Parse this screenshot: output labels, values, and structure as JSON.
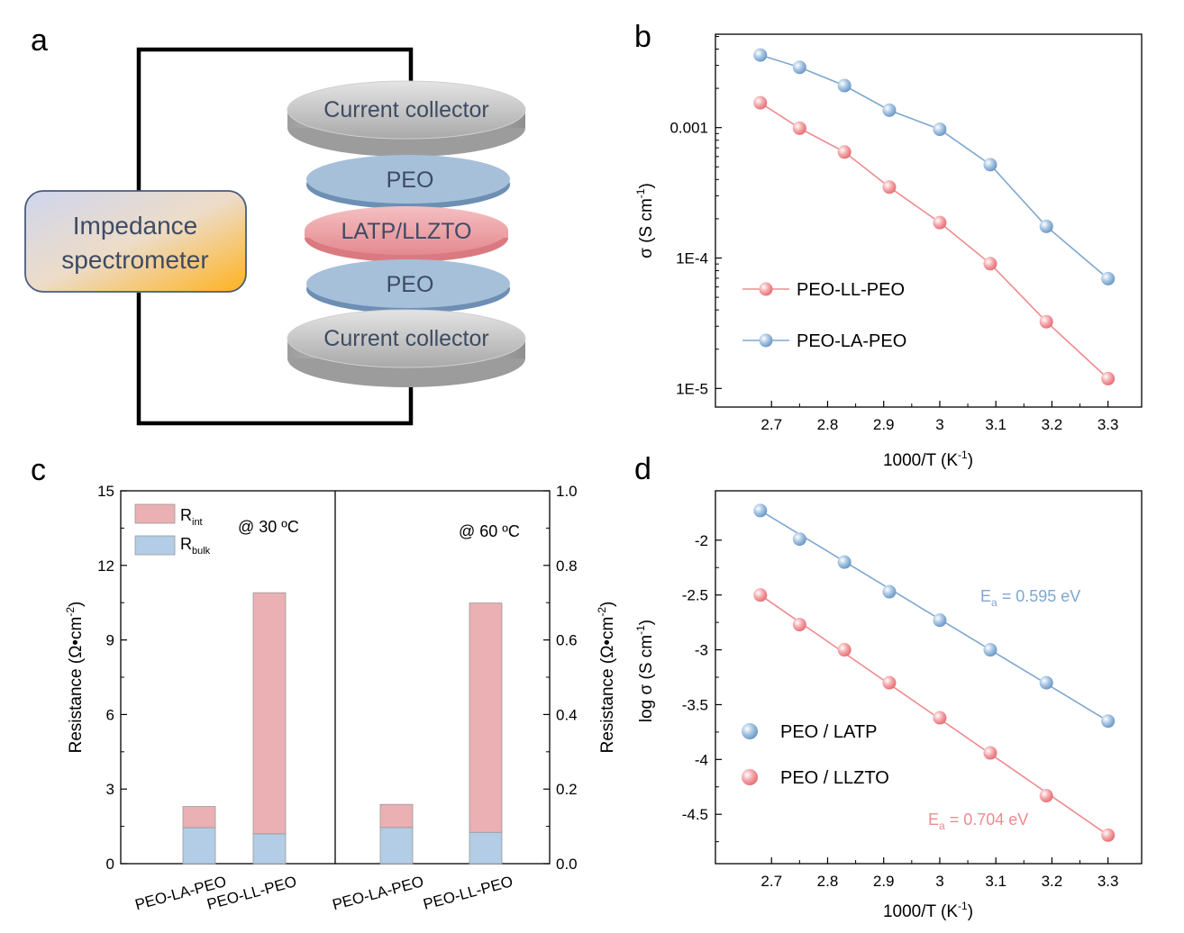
{
  "panels": {
    "a": {
      "letter": "a",
      "spectrometer_line1": "Impedance",
      "spectrometer_line2": "spectrometer",
      "layers": [
        "Current collector",
        "PEO",
        "LATP/LLZTO",
        "PEO",
        "Current collector"
      ]
    },
    "b": {
      "letter": "b",
      "xlabel_main": "1000/T (K",
      "xlabel_sup": "-1",
      "xlabel_end": ")",
      "ylabel_main": "σ (S cm",
      "ylabel_sup": "-1",
      "ylabel_end": ")"
    },
    "c": {
      "letter": "c",
      "ylabel_main": "Resistance (Ω•cm",
      "ylabel_sup": "-2",
      "ylabel_end": ")",
      "legend_int_main": "R",
      "legend_int_sub": "int",
      "legend_bulk_main": "R",
      "legend_bulk_sub": "bulk",
      "left_annotation": "@ 30 ºC",
      "right_annotation": "@ 60 ºC"
    },
    "d": {
      "letter": "d",
      "xlabel_main": "1000/T (K",
      "xlabel_sup": "-1",
      "xlabel_end": ")",
      "ylabel_main": "log σ (S cm",
      "ylabel_sup": "-1",
      "ylabel_end": ")",
      "ea_latp_main": "E",
      "ea_latp_sub": "a",
      "ea_latp_value": " = 0.595 eV",
      "ea_llzto_main": "E",
      "ea_llzto_sub": "a",
      "ea_llzto_value": " = 0.704 eV"
    }
  },
  "colors": {
    "blue": "#8fb6dc",
    "blue_line": "#7fa7cf",
    "pink": "#f19a9d",
    "pink_line": "#f08a8e",
    "bar_int": "#eab0b3",
    "bar_bulk": "#b3cde6",
    "ea_latp_text": "#7fa7cf",
    "ea_llzto_text": "#f08a8e"
  },
  "chart_data": [
    {
      "id": "b",
      "type": "line",
      "xlabel": "1000/T (K-1)",
      "ylabel": "σ (S cm-1)",
      "log_y": true,
      "xlim": [
        2.6,
        3.36
      ],
      "ylim": [
        7.2e-06,
        0.0052
      ],
      "xticks": [
        2.7,
        2.8,
        2.9,
        3,
        3.1,
        3.2,
        3.3
      ],
      "xtick_labels": [
        "2.7",
        "2.8",
        "2.9",
        "3",
        "3.1",
        "3.2",
        "3.3"
      ],
      "yticks": [
        1e-05,
        0.0001,
        0.001
      ],
      "ytick_labels": [
        "1E-5",
        "1E-4",
        "0.001"
      ],
      "legend_position": "bottom-left",
      "x": [
        2.68,
        2.75,
        2.83,
        2.91,
        3.0,
        3.09,
        3.19,
        3.3
      ],
      "series": [
        {
          "name": "PEO-LL-PEO",
          "color": "#f08a8e",
          "values": [
            0.00155,
            0.00099,
            0.00065,
            0.00035,
            0.000187,
            9.05e-05,
            3.25e-05,
            1.19e-05
          ]
        },
        {
          "name": "PEO-LA-PEO",
          "color": "#7fa7cf",
          "values": [
            0.0036,
            0.0029,
            0.0021,
            0.00136,
            0.00097,
            0.00052,
            0.000175,
            6.95e-05
          ]
        }
      ]
    },
    {
      "id": "c",
      "type": "bar",
      "stacked": true,
      "subplots": [
        {
          "annotation": "@ 30 ºC",
          "ylim": [
            0,
            15
          ],
          "yticks": [
            0,
            3,
            6,
            9,
            12,
            15
          ],
          "categories": [
            "PEO-LA-PEO",
            "PEO-LL-PEO"
          ],
          "series": [
            {
              "name": "Rbulk",
              "values": [
                1.45,
                1.2
              ]
            },
            {
              "name": "Rint",
              "values": [
                0.85,
                9.7
              ]
            }
          ]
        },
        {
          "annotation": "@ 60 ºC",
          "ylim": [
            0,
            1.0
          ],
          "yticks": [
            0.0,
            0.2,
            0.4,
            0.6,
            0.8,
            1.0
          ],
          "ytick_labels": [
            "0.0",
            "0.2",
            "0.4",
            "0.6",
            "0.8",
            "1.0"
          ],
          "categories": [
            "PEO-LA-PEO",
            "PEO-LL-PEO"
          ],
          "series": [
            {
              "name": "Rbulk",
              "values": [
                0.097,
                0.084
              ]
            },
            {
              "name": "Rint",
              "values": [
                0.062,
                0.615
              ]
            }
          ]
        }
      ],
      "ylabel": "Resistance (Ω•cm-2)",
      "legend_position": "top-left"
    },
    {
      "id": "d",
      "type": "scatter",
      "xlabel": "1000/T (K-1)",
      "ylabel": "log σ (S cm-1)",
      "xlim": [
        2.6,
        3.36
      ],
      "ylim": [
        -4.95,
        -1.55
      ],
      "xticks": [
        2.7,
        2.8,
        2.9,
        3,
        3.1,
        3.2,
        3.3
      ],
      "xtick_labels": [
        "2.7",
        "2.8",
        "2.9",
        "3",
        "3.1",
        "3.2",
        "3.3"
      ],
      "yticks": [
        -2,
        -2.5,
        -3,
        -3.5,
        -4,
        -4.5
      ],
      "ytick_labels": [
        "-2",
        "-2.5",
        "-3",
        "-3.5",
        "-4",
        "-4.5"
      ],
      "legend_position": "bottom-left",
      "x": [
        2.68,
        2.75,
        2.83,
        2.91,
        3.0,
        3.09,
        3.19,
        3.3
      ],
      "series": [
        {
          "name": "PEO / LATP",
          "color": "#7fa7cf",
          "values": [
            -1.73,
            -1.99,
            -2.2,
            -2.47,
            -2.73,
            -3.0,
            -3.3,
            -3.65
          ],
          "fit": [
            -1.73,
            -3.65
          ],
          "annotation": "Ea = 0.595 eV"
        },
        {
          "name": "PEO / LLZTO",
          "color": "#f08a8e",
          "values": [
            -2.5,
            -2.77,
            -3.0,
            -3.3,
            -3.62,
            -3.94,
            -4.33,
            -4.69
          ],
          "fit": [
            -2.5,
            -4.69
          ],
          "annotation": "Ea = 0.704 eV"
        }
      ]
    }
  ]
}
